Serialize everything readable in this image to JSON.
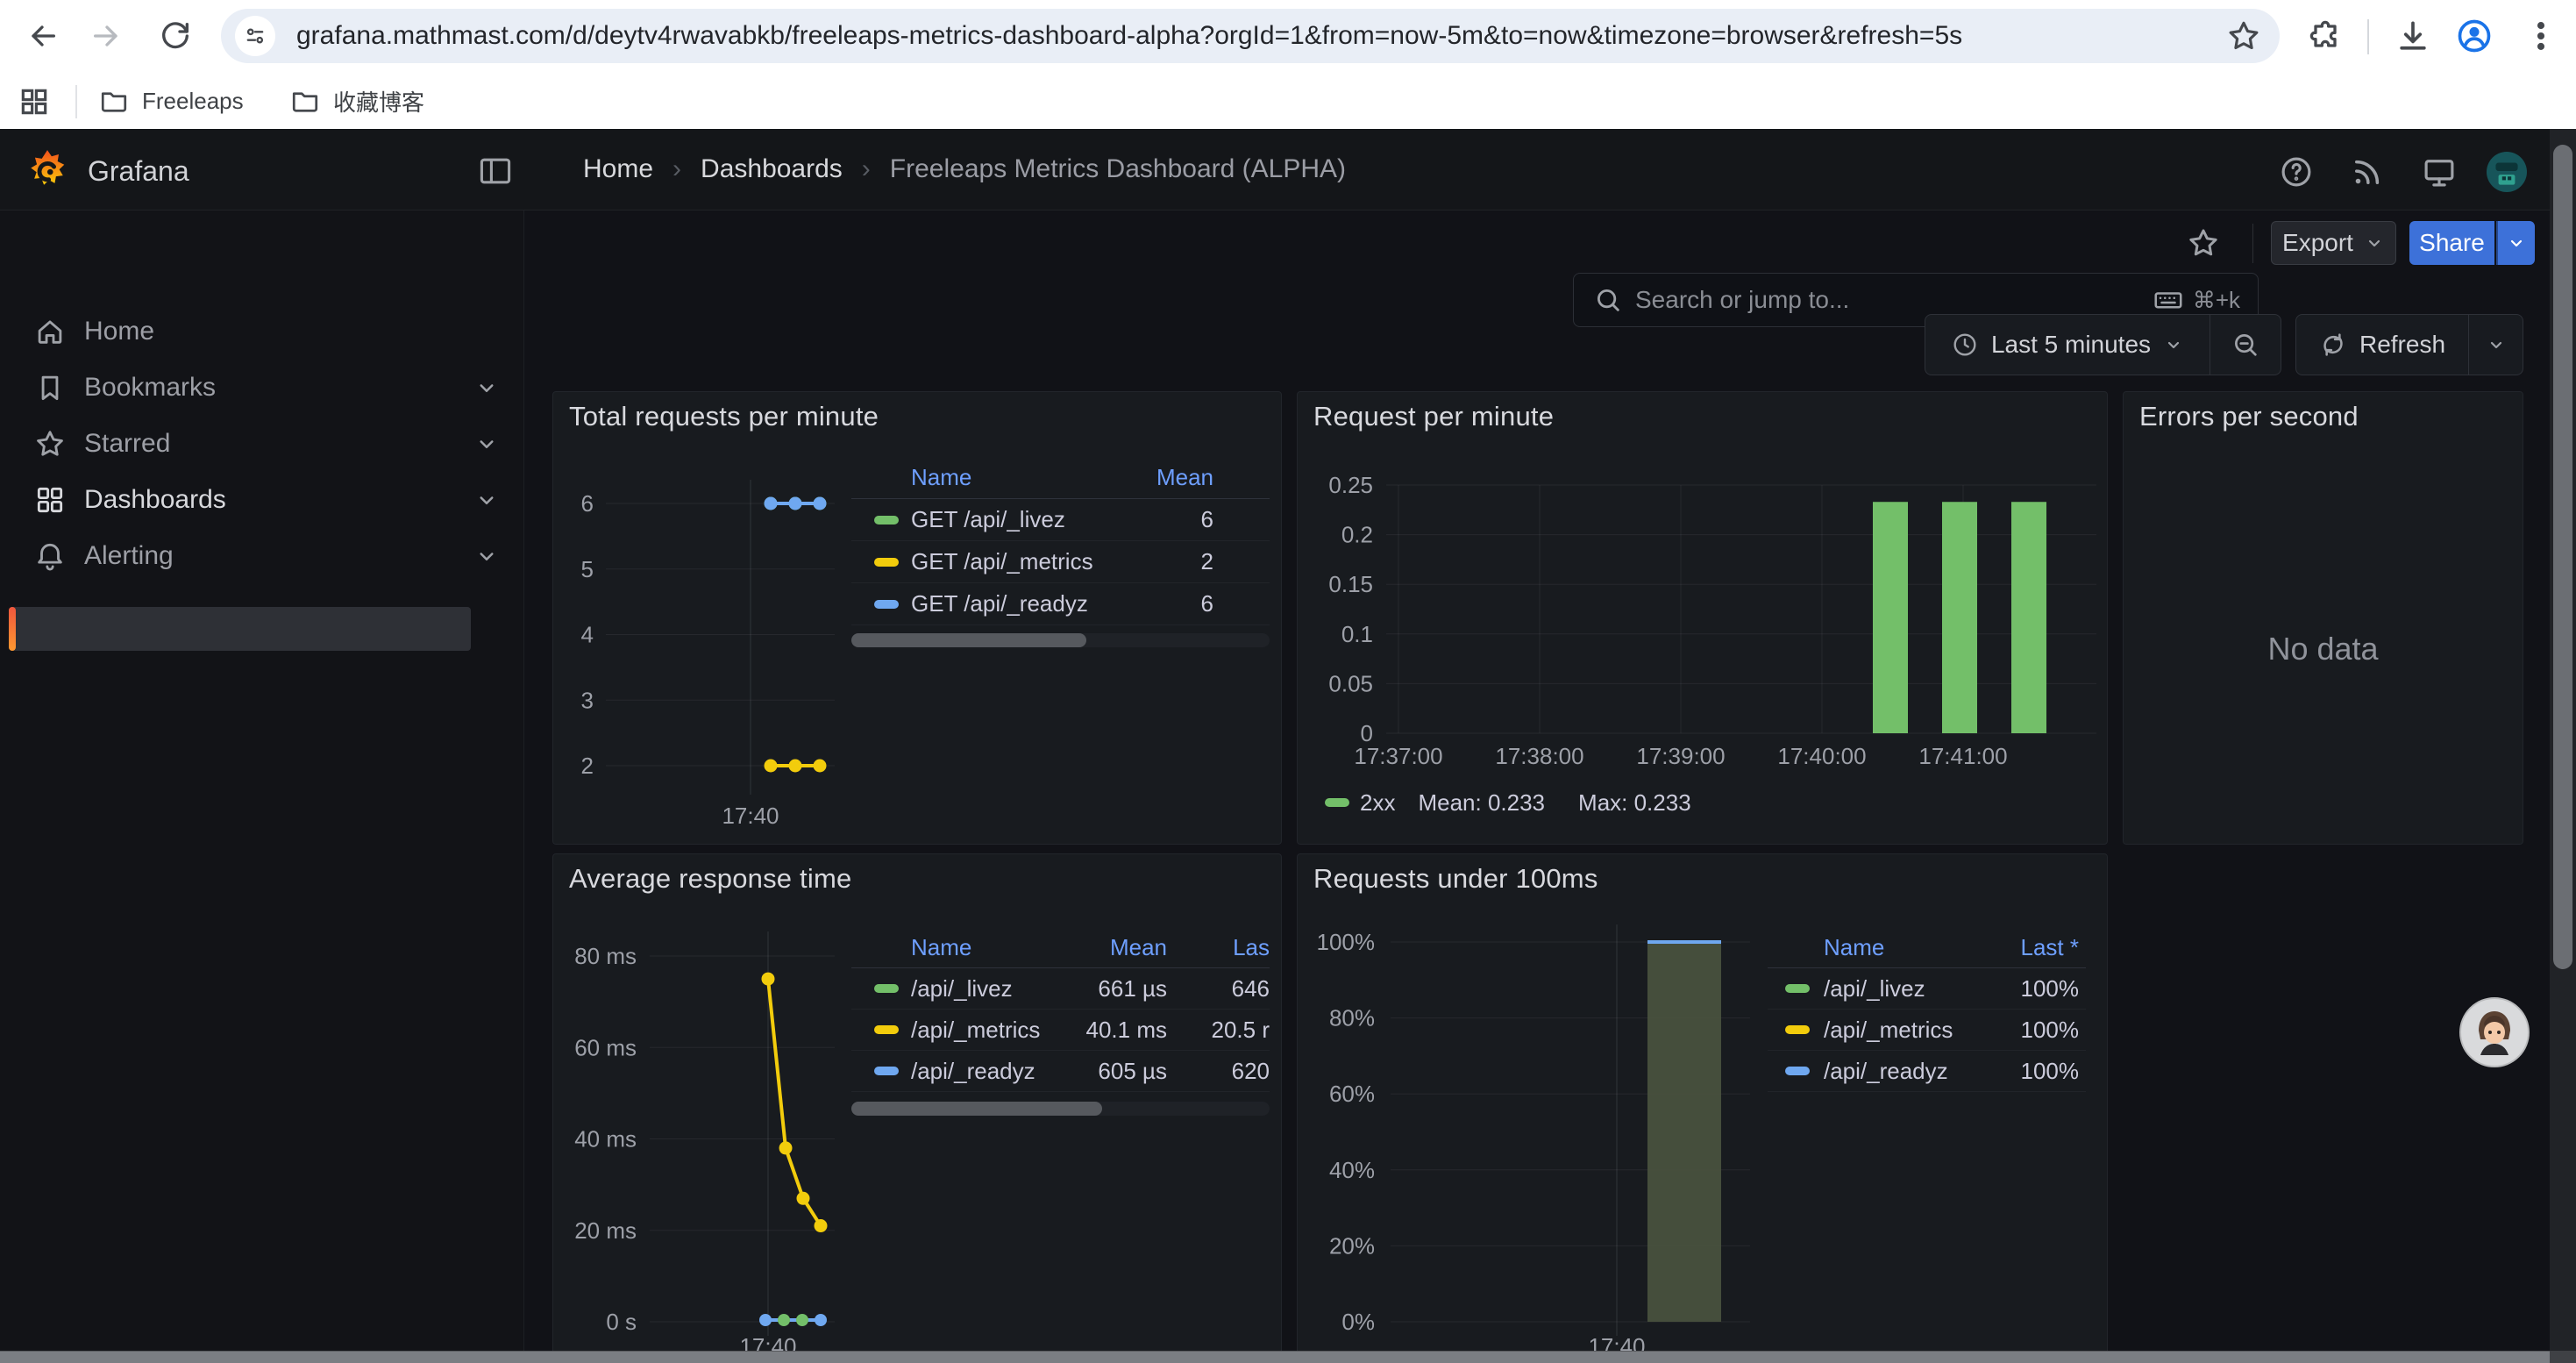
{
  "browser": {
    "toolbar": {
      "url": "grafana.mathmast.com/d/deytv4rwavabkb/freeleaps-metrics-dashboard-alpha?orgId=1&from=now-5m&to=now&timezone=browser&refresh=5s"
    },
    "bookmarks": [
      "Freeleaps",
      "收藏博客"
    ]
  },
  "grafana": {
    "brand": "Grafana",
    "breadcrumb": {
      "home": "Home",
      "section": "Dashboards",
      "page": "Freeleaps Metrics Dashboard (ALPHA)",
      "sep": "›"
    },
    "search": {
      "placeholder": "Search or jump to...",
      "shortcut": "⌘+k"
    },
    "actions": {
      "export": "Export",
      "share": "Share"
    },
    "time": {
      "range": "Last 5 minutes",
      "refresh": "Refresh"
    },
    "sidebar": [
      {
        "label": "Home"
      },
      {
        "label": "Bookmarks"
      },
      {
        "label": "Starred"
      },
      {
        "label": "Dashboards"
      },
      {
        "label": "Alerting"
      }
    ]
  },
  "panels": {
    "p1": {
      "title": "Total requests per minute",
      "legend_headers": {
        "name": "Name",
        "mean": "Mean"
      }
    },
    "p2": {
      "title": "Request per minute",
      "legend": {
        "series": "2xx",
        "mean": "Mean: 0.233",
        "max": "Max: 0.233"
      }
    },
    "p3": {
      "title": "Errors per second",
      "message": "No data"
    },
    "p4": {
      "title": "Average response time",
      "legend_headers": {
        "name": "Name",
        "mean": "Mean",
        "last": "Las"
      }
    },
    "p5": {
      "title": "Requests under 100ms",
      "legend_headers": {
        "name": "Name",
        "last": "Last *"
      }
    }
  },
  "chart_data": [
    {
      "panel": "Total requests per minute",
      "type": "line",
      "x_tick": "17:40",
      "yticks": [
        6,
        5,
        4,
        3,
        2
      ],
      "ylim": [
        2,
        6
      ],
      "series": [
        {
          "name": "GET /api/_livez",
          "color": "#73bf69",
          "values": [
            6,
            6,
            6
          ],
          "mean": 6
        },
        {
          "name": "GET /api/_metrics",
          "color": "#f2cc0c",
          "values": [
            2,
            2,
            2
          ],
          "mean": 2
        },
        {
          "name": "GET /api/_readyz",
          "color": "#6fa8f0",
          "values": [
            6,
            6,
            6
          ],
          "mean": 6
        }
      ]
    },
    {
      "panel": "Request per minute",
      "type": "bar",
      "xticks": [
        "17:37:00",
        "17:38:00",
        "17:39:00",
        "17:40:00",
        "17:41:00"
      ],
      "yticks": [
        "0.25",
        "0.2",
        "0.15",
        "0.1",
        "0.05",
        "0"
      ],
      "ylim": [
        0,
        0.25
      ],
      "series": [
        {
          "name": "2xx",
          "color": "#73bf69",
          "values": [
            0.233,
            0.233,
            0.233
          ],
          "bar_times": [
            "17:40:30",
            "17:41:00",
            "17:41:30"
          ],
          "mean": 0.233,
          "max": 0.233
        }
      ]
    },
    {
      "panel": "Errors per second",
      "type": "line",
      "message": "No data"
    },
    {
      "panel": "Average response time",
      "type": "line",
      "x_tick": "17:40",
      "yticks": [
        "80 ms",
        "60 ms",
        "40 ms",
        "20 ms",
        "0 s"
      ],
      "ylim_ms": [
        0,
        80
      ],
      "series": [
        {
          "name": "/api/_livez",
          "color": "#73bf69",
          "values_ms": [
            0.65,
            0.65,
            0.65,
            0.65
          ],
          "mean": "661 µs",
          "last": "646"
        },
        {
          "name": "/api/_metrics",
          "color": "#f2cc0c",
          "values_ms": [
            75,
            38,
            27,
            21
          ],
          "mean": "40.1 ms",
          "last": "20.5 r"
        },
        {
          "name": "/api/_readyz",
          "color": "#6fa8f0",
          "values_ms": [
            0.6,
            0.6,
            0.6,
            0.6
          ],
          "mean": "605 µs",
          "last": "620"
        }
      ],
      "zero_dot_colors": [
        "#6fa8f0",
        "#73bf69",
        "#73bf69",
        "#6fa8f0"
      ]
    },
    {
      "panel": "Requests under 100ms",
      "type": "bar",
      "x_tick": "17:40",
      "yticks": [
        "100%",
        "80%",
        "60%",
        "40%",
        "20%",
        "0%"
      ],
      "ylim": [
        0,
        100
      ],
      "bar": {
        "value": 100,
        "time": "17:40:30",
        "fill": "#4a523f",
        "top_line": "#6fa8f0"
      },
      "series": [
        {
          "name": "/api/_livez",
          "color": "#73bf69",
          "last": "100%"
        },
        {
          "name": "/api/_metrics",
          "color": "#f2cc0c",
          "last": "100%"
        },
        {
          "name": "/api/_readyz",
          "color": "#6fa8f0",
          "last": "100%"
        }
      ]
    }
  ],
  "colors": {
    "green": "#73bf69",
    "yellow": "#f2cc0c",
    "blue": "#6fa8f0",
    "link_blue": "#6e9fff",
    "share_blue": "#3d71d9",
    "accent_orange": "#f55f3c",
    "canvas": "#111217",
    "panel": "#181b1f"
  }
}
